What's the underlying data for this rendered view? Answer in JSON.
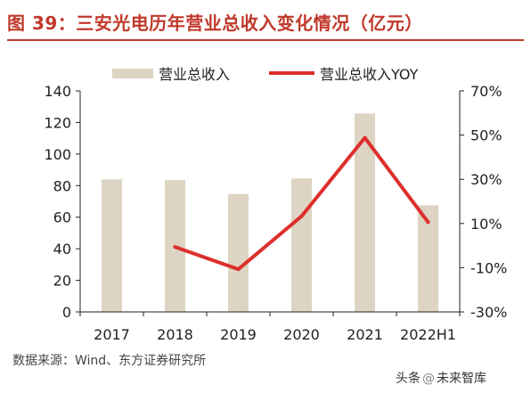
{
  "title": "图 39：三安光电历年营业总收入变化情况（亿元）",
  "source": "数据来源：Wind、东方证券研究所",
  "watermark": {
    "prefix": "头条",
    "name": "未来智库"
  },
  "colors": {
    "bar": "#ded4c3",
    "line": "#dc2f2b",
    "title": "#c0392b",
    "axis": "#222222"
  },
  "chart_data": {
    "type": "bar",
    "categories": [
      "2017",
      "2018",
      "2019",
      "2020",
      "2021",
      "2022H1"
    ],
    "series": [
      {
        "name": "营业总收入",
        "type": "bar",
        "axis": "left",
        "values": [
          84,
          83.5,
          74.6,
          84.5,
          125.7,
          67.5
        ]
      },
      {
        "name": "营业总收入YOY",
        "type": "line",
        "axis": "right",
        "unit": "%",
        "values": [
          null,
          -0.6,
          -10.7,
          13.3,
          48.8,
          10.6
        ]
      }
    ],
    "y_left": {
      "lim": [
        0,
        140
      ],
      "ticks": [
        "0",
        "20",
        "40",
        "60",
        "80",
        "100",
        "120",
        "140"
      ]
    },
    "y_right": {
      "lim": [
        -30,
        70
      ],
      "ticks": [
        "-30%",
        "-10%",
        "10%",
        "30%",
        "50%",
        "70%"
      ]
    },
    "legend": "top",
    "grid": false
  }
}
